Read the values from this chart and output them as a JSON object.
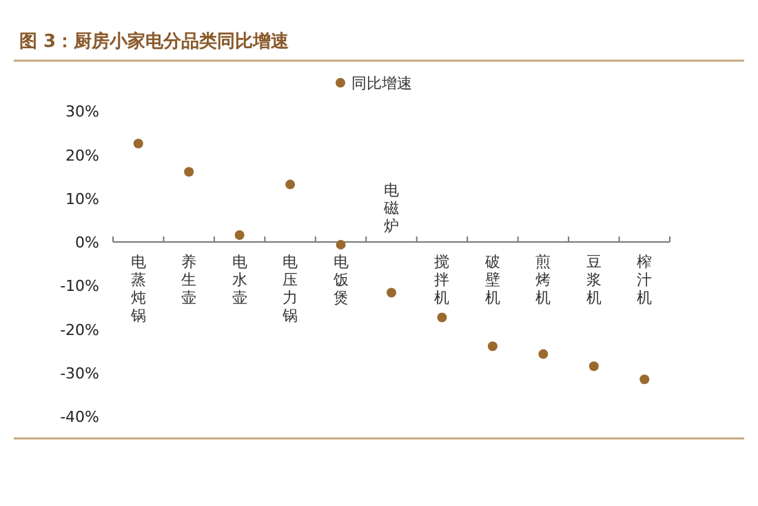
{
  "chart_data": {
    "type": "scatter",
    "title": "图 3：厨房小家电分品类同比增速",
    "categories": [
      "电蒸炖锅",
      "养生壶",
      "电水壶",
      "电压力锅",
      "电饭煲",
      "电磁炉",
      "搅拌机",
      "破壁机",
      "煎烤机",
      "豆浆机",
      "榨汁机"
    ],
    "series": [
      {
        "name": "同比增速",
        "color": "#9a6a2e",
        "values": [
          22.6,
          16.1,
          1.6,
          13.2,
          -0.6,
          -11.6,
          -17.3,
          -23.9,
          -25.7,
          -28.5,
          -31.5
        ]
      }
    ],
    "ylim": [
      -40,
      30
    ],
    "yticks": [
      {
        "value": 30,
        "label": "30%"
      },
      {
        "value": 20,
        "label": "20%"
      },
      {
        "value": 10,
        "label": "10%"
      },
      {
        "value": 0,
        "label": "0%"
      },
      {
        "value": -10,
        "label": "-10%"
      },
      {
        "value": -20,
        "label": "-20%"
      },
      {
        "value": -30,
        "label": "-30%"
      },
      {
        "value": -40,
        "label": "-40%"
      }
    ],
    "legend": "top",
    "marker": "circle"
  }
}
